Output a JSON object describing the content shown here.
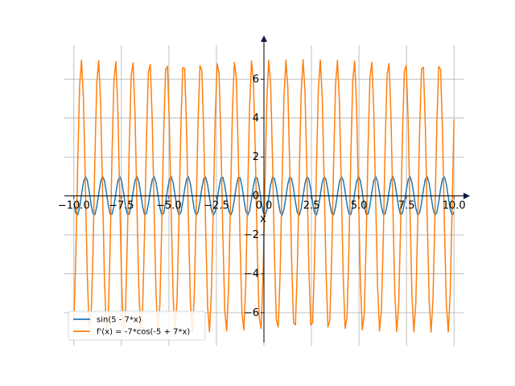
{
  "chart_data": {
    "type": "line",
    "xlabel": "x",
    "xlim": [
      -10.5,
      10.5
    ],
    "ylim": [
      -7.7,
      8.0
    ],
    "grid": true,
    "legend_position": "bottom-left",
    "x_ticks": [
      -10.0,
      -7.5,
      -5.0,
      -2.5,
      0.0,
      2.5,
      5.0,
      7.5,
      10.0
    ],
    "x_tick_labels": [
      "−10.0",
      "−7.5",
      "−5.0",
      "−2.5",
      "0.0",
      "2.5",
      "5.0",
      "7.5",
      "10.0"
    ],
    "y_ticks": [
      -6,
      -4,
      -2,
      0,
      2,
      4,
      6
    ],
    "y_tick_labels": [
      "−6",
      "−4",
      "−2",
      "0",
      "2",
      "4",
      "6"
    ],
    "x_range": [
      -10,
      10
    ],
    "samples": 200,
    "series": [
      {
        "name": "sin(5 - 7*x)",
        "color": "#1f77b4"
      },
      {
        "name": "f'(x) = -7*cos(-5 + 7*x)",
        "color": "#ff7f0e"
      }
    ]
  }
}
